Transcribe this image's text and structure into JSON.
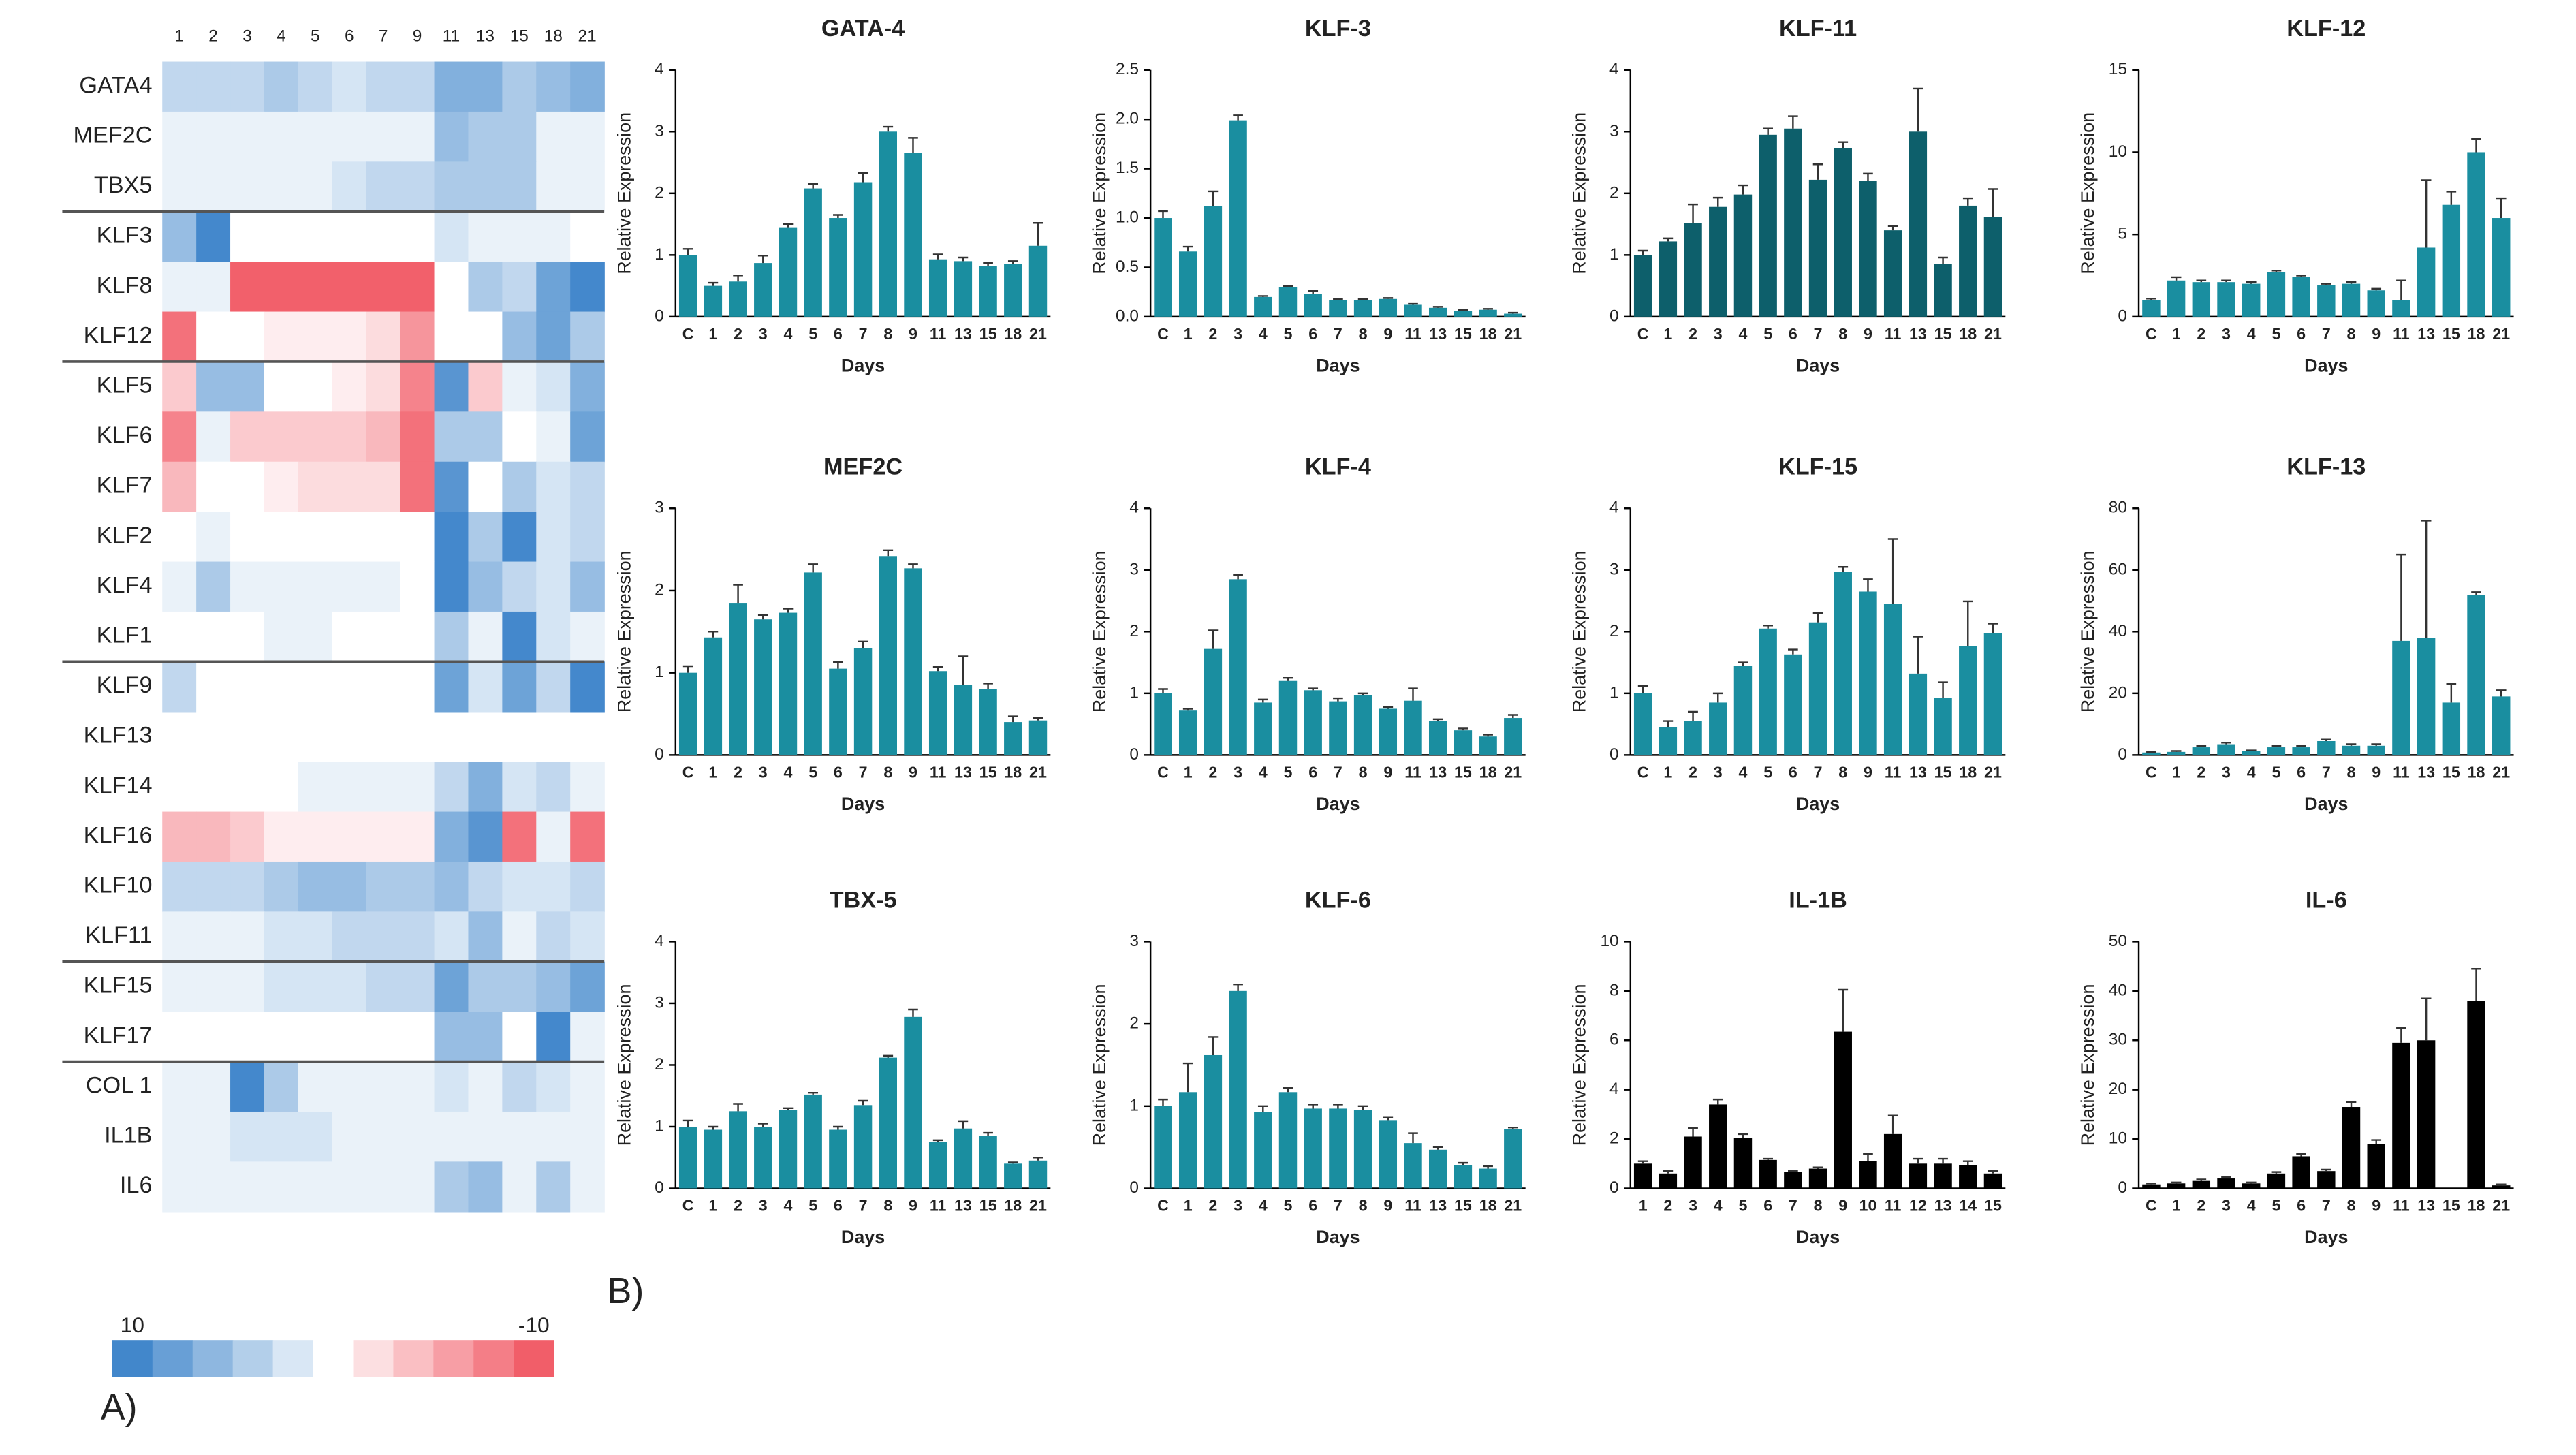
{
  "panel_labels": [
    "A)",
    "B)"
  ],
  "chart_data": [
    {
      "type": "heatmap",
      "columns": [
        "1",
        "2",
        "3",
        "4",
        "5",
        "6",
        "7",
        "9",
        "11",
        "13",
        "15",
        "18",
        "21"
      ],
      "rows": [
        "GATA4",
        "MEF2C",
        "TBX5",
        "KLF3",
        "KLF8",
        "KLF12",
        "KLF5",
        "KLF6",
        "KLF7",
        "KLF2",
        "KLF4",
        "KLF1",
        "KLF9",
        "KLF13",
        "KLF14",
        "KLF16",
        "KLF10",
        "KLF11",
        "KLF15",
        "KLF17",
        "COL 1",
        "IL1B",
        "IL6"
      ],
      "values": [
        [
          3,
          3,
          3,
          4,
          3,
          2,
          3,
          3,
          6,
          6,
          4,
          5,
          6
        ],
        [
          1,
          1,
          1,
          1,
          1,
          1,
          1,
          1,
          5,
          4,
          4,
          1,
          1
        ],
        [
          1,
          1,
          1,
          1,
          1,
          2,
          3,
          3,
          4,
          4,
          4,
          1,
          1
        ],
        [
          5,
          9,
          0,
          0,
          0,
          0,
          0,
          0,
          2,
          1,
          1,
          1,
          0
        ],
        [
          1,
          1,
          -9,
          -9,
          -9,
          -9,
          -9,
          -9,
          0,
          4,
          3,
          7,
          9
        ],
        [
          -8,
          0,
          0,
          -1,
          -1,
          -1,
          -2,
          -6,
          0,
          0,
          5,
          7,
          4
        ],
        [
          -3,
          5,
          5,
          0,
          0,
          -1,
          -2,
          -7,
          8,
          -3,
          1,
          2,
          6
        ],
        [
          -7,
          1,
          -3,
          -3,
          -3,
          -3,
          -4,
          -8,
          4,
          4,
          0,
          1,
          7
        ],
        [
          -4,
          0,
          0,
          -1,
          -2,
          -2,
          -2,
          -8,
          8,
          0,
          4,
          2,
          3
        ],
        [
          0,
          1,
          0,
          0,
          0,
          0,
          0,
          0,
          9,
          4,
          9,
          2,
          3
        ],
        [
          1,
          4,
          1,
          1,
          1,
          1,
          1,
          0,
          9,
          5,
          3,
          2,
          5
        ],
        [
          0,
          0,
          0,
          1,
          1,
          0,
          0,
          0,
          4,
          1,
          9,
          2,
          1
        ],
        [
          3,
          0,
          0,
          0,
          0,
          0,
          0,
          0,
          7,
          2,
          7,
          3,
          9
        ],
        [
          null,
          null,
          null,
          null,
          null,
          null,
          null,
          null,
          null,
          null,
          null,
          null,
          null
        ],
        [
          0,
          0,
          0,
          0,
          1,
          1,
          1,
          1,
          3,
          6,
          2,
          3,
          1
        ],
        [
          -4,
          -4,
          -3,
          -1,
          -1,
          -1,
          -1,
          -1,
          6,
          8,
          -8,
          1,
          -8
        ],
        [
          3,
          3,
          3,
          4,
          5,
          5,
          4,
          4,
          5,
          3,
          2,
          2,
          3
        ],
        [
          1,
          1,
          1,
          2,
          2,
          3,
          3,
          3,
          2,
          5,
          1,
          3,
          2
        ],
        [
          1,
          1,
          1,
          2,
          2,
          2,
          3,
          3,
          7,
          4,
          4,
          5,
          7
        ],
        [
          0,
          0,
          0,
          0,
          0,
          0,
          0,
          0,
          5,
          5,
          0,
          9,
          1
        ],
        [
          1,
          1,
          9,
          4,
          1,
          1,
          1,
          1,
          2,
          1,
          3,
          2,
          1
        ],
        [
          1,
          1,
          2,
          2,
          2,
          1,
          1,
          1,
          1,
          1,
          1,
          1,
          1
        ],
        [
          1,
          1,
          1,
          1,
          1,
          1,
          1,
          1,
          4,
          5,
          1,
          4,
          1
        ]
      ],
      "zlim": [
        -10,
        10
      ],
      "colorbar_ticks": [
        10,
        -10
      ],
      "positive_color": "#2f7bc6",
      "negative_color": "#f04e5a"
    },
    {
      "type": "bar",
      "title": "GATA-4",
      "xlabel": "Days",
      "ylabel": "Relative Expression",
      "color": "#1a8ea0",
      "categories": [
        "C",
        "1",
        "2",
        "3",
        "4",
        "5",
        "6",
        "7",
        "8",
        "9",
        "11",
        "13",
        "15",
        "18",
        "21"
      ],
      "values": [
        1.0,
        0.5,
        0.57,
        0.87,
        1.45,
        2.08,
        1.6,
        2.18,
        3.0,
        2.65,
        0.93,
        0.9,
        0.82,
        0.85,
        1.15
      ],
      "errors": [
        0.1,
        0.05,
        0.1,
        0.12,
        0.05,
        0.07,
        0.05,
        0.15,
        0.08,
        0.25,
        0.08,
        0.06,
        0.05,
        0.05,
        0.37
      ],
      "ylim": [
        0,
        4
      ],
      "yticks": [
        0,
        1,
        2,
        3,
        4
      ]
    },
    {
      "type": "bar",
      "title": "KLF-3",
      "xlabel": "Days",
      "ylabel": "Relative Expression",
      "color": "#1a8ea0",
      "categories": [
        "C",
        "1",
        "2",
        "3",
        "4",
        "5",
        "6",
        "7",
        "8",
        "9",
        "11",
        "13",
        "15",
        "18",
        "21"
      ],
      "values": [
        1.0,
        0.66,
        1.12,
        1.99,
        0.2,
        0.3,
        0.23,
        0.17,
        0.17,
        0.18,
        0.12,
        0.09,
        0.06,
        0.07,
        0.03
      ],
      "errors": [
        0.07,
        0.05,
        0.15,
        0.05,
        0.01,
        0.01,
        0.03,
        0.01,
        0.01,
        0.01,
        0.01,
        0.01,
        0.01,
        0.01,
        0.01
      ],
      "ylim": [
        0,
        2.5
      ],
      "yticks": [
        {
          "value": 0,
          "label": "0.0"
        },
        0.5,
        {
          "value": 1,
          "label": "1.0"
        },
        1.5,
        {
          "value": 2,
          "label": "2.0"
        },
        2.5
      ]
    },
    {
      "type": "bar",
      "title": "KLF-11",
      "xlabel": "Days",
      "ylabel": "Relative Expression",
      "color": "#0d5f6b",
      "categories": [
        "C",
        "1",
        "2",
        "3",
        "4",
        "5",
        "6",
        "7",
        "8",
        "9",
        "11",
        "13",
        "15",
        "18",
        "21"
      ],
      "values": [
        1.0,
        1.22,
        1.52,
        1.78,
        1.98,
        2.95,
        3.05,
        2.22,
        2.73,
        2.2,
        1.4,
        3.0,
        0.86,
        1.8,
        1.62
      ],
      "errors": [
        0.07,
        0.05,
        0.3,
        0.15,
        0.15,
        0.1,
        0.2,
        0.25,
        0.1,
        0.12,
        0.07,
        0.7,
        0.1,
        0.12,
        0.45
      ],
      "ylim": [
        0,
        4
      ],
      "yticks": [
        0,
        1,
        2,
        3,
        4
      ]
    },
    {
      "type": "bar",
      "title": "KLF-12",
      "xlabel": "Days",
      "ylabel": "Relative Expression",
      "color": "#1a8ea0",
      "categories": [
        "C",
        "1",
        "2",
        "3",
        "4",
        "5",
        "6",
        "7",
        "8",
        "9",
        "11",
        "13",
        "15",
        "18",
        "21"
      ],
      "values": [
        1.0,
        2.2,
        2.1,
        2.1,
        2.0,
        2.7,
        2.4,
        1.9,
        2.0,
        1.6,
        1.0,
        4.2,
        6.8,
        10.0,
        6.0
      ],
      "errors": [
        0.1,
        0.2,
        0.1,
        0.1,
        0.1,
        0.1,
        0.1,
        0.1,
        0.1,
        0.1,
        1.2,
        4.1,
        0.8,
        0.8,
        1.2
      ],
      "ylim": [
        0,
        15
      ],
      "yticks": [
        0,
        5,
        10,
        15
      ]
    },
    {
      "type": "bar",
      "title": "MEF2C",
      "xlabel": "Days",
      "ylabel": "Relative Expression",
      "color": "#1a8ea0",
      "categories": [
        "C",
        "1",
        "2",
        "3",
        "4",
        "5",
        "6",
        "7",
        "8",
        "9",
        "11",
        "13",
        "15",
        "18",
        "21"
      ],
      "values": [
        1.0,
        1.43,
        1.85,
        1.65,
        1.73,
        2.22,
        1.05,
        1.3,
        2.42,
        2.27,
        1.02,
        0.85,
        0.8,
        0.4,
        0.42
      ],
      "errors": [
        0.08,
        0.07,
        0.22,
        0.05,
        0.05,
        0.1,
        0.08,
        0.08,
        0.07,
        0.05,
        0.05,
        0.35,
        0.07,
        0.07,
        0.03
      ],
      "ylim": [
        0,
        3
      ],
      "yticks": [
        0,
        1,
        2,
        3
      ]
    },
    {
      "type": "bar",
      "title": "KLF-4",
      "xlabel": "Days",
      "ylabel": "Relative Expression",
      "color": "#1a8ea0",
      "categories": [
        "C",
        "1",
        "2",
        "3",
        "4",
        "5",
        "6",
        "7",
        "8",
        "9",
        "11",
        "13",
        "15",
        "18",
        "21"
      ],
      "values": [
        1.0,
        0.72,
        1.72,
        2.85,
        0.85,
        1.2,
        1.05,
        0.87,
        0.97,
        0.75,
        0.88,
        0.55,
        0.4,
        0.3,
        0.6
      ],
      "errors": [
        0.07,
        0.03,
        0.3,
        0.07,
        0.05,
        0.05,
        0.03,
        0.05,
        0.03,
        0.03,
        0.2,
        0.03,
        0.03,
        0.03,
        0.05
      ],
      "ylim": [
        0,
        4
      ],
      "yticks": [
        0,
        1,
        2,
        3,
        4
      ]
    },
    {
      "type": "bar",
      "title": "KLF-15",
      "xlabel": "Days",
      "ylabel": "Relative Expression",
      "color": "#1a8ea0",
      "categories": [
        "C",
        "1",
        "2",
        "3",
        "4",
        "5",
        "6",
        "7",
        "8",
        "9",
        "11",
        "13",
        "15",
        "18",
        "21"
      ],
      "values": [
        1.0,
        0.45,
        0.55,
        0.85,
        1.45,
        2.05,
        1.63,
        2.15,
        2.97,
        2.65,
        2.45,
        1.32,
        0.93,
        1.77,
        1.98
      ],
      "errors": [
        0.12,
        0.1,
        0.15,
        0.15,
        0.05,
        0.05,
        0.08,
        0.15,
        0.08,
        0.2,
        1.05,
        0.6,
        0.25,
        0.72,
        0.15
      ],
      "ylim": [
        0,
        4
      ],
      "yticks": [
        0,
        1,
        2,
        3,
        4
      ]
    },
    {
      "type": "bar",
      "title": "KLF-13",
      "xlabel": "Days",
      "ylabel": "Relative Expression",
      "color": "#1a8ea0",
      "categories": [
        "C",
        "1",
        "2",
        "3",
        "4",
        "5",
        "6",
        "7",
        "8",
        "9",
        "11",
        "13",
        "15",
        "18",
        "21"
      ],
      "values": [
        0.8,
        1,
        2.5,
        3.5,
        1.2,
        2.5,
        2.5,
        4.5,
        3,
        3,
        37,
        38,
        17,
        52,
        19
      ],
      "errors": [
        0.2,
        0.3,
        0.5,
        0.5,
        0.3,
        0.5,
        0.5,
        0.5,
        0.5,
        0.5,
        28,
        38,
        6,
        0.8,
        2
      ],
      "ylim": [
        0,
        80
      ],
      "yticks": [
        0,
        20,
        40,
        60,
        80
      ]
    },
    {
      "type": "bar",
      "title": "TBX-5",
      "xlabel": "Days",
      "ylabel": "Relative Expression",
      "color": "#1a8ea0",
      "categories": [
        "C",
        "1",
        "2",
        "3",
        "4",
        "5",
        "6",
        "7",
        "8",
        "9",
        "11",
        "13",
        "15",
        "18",
        "21"
      ],
      "values": [
        1.0,
        0.95,
        1.25,
        1.0,
        1.27,
        1.52,
        0.95,
        1.35,
        2.12,
        2.78,
        0.75,
        0.97,
        0.85,
        0.4,
        0.45
      ],
      "errors": [
        0.1,
        0.05,
        0.12,
        0.05,
        0.03,
        0.03,
        0.05,
        0.07,
        0.03,
        0.12,
        0.03,
        0.12,
        0.05,
        0.02,
        0.05
      ],
      "ylim": [
        0,
        4
      ],
      "yticks": [
        0,
        1,
        2,
        3,
        4
      ]
    },
    {
      "type": "bar",
      "title": "KLF-6",
      "xlabel": "Days",
      "ylabel": "Relative Expression",
      "color": "#1a8ea0",
      "categories": [
        "C",
        "1",
        "2",
        "3",
        "4",
        "5",
        "6",
        "7",
        "8",
        "9",
        "11",
        "13",
        "15",
        "18",
        "21"
      ],
      "values": [
        1.0,
        1.17,
        1.62,
        2.4,
        0.93,
        1.17,
        0.97,
        0.97,
        0.95,
        0.83,
        0.55,
        0.47,
        0.28,
        0.24,
        0.72
      ],
      "errors": [
        0.08,
        0.35,
        0.22,
        0.08,
        0.07,
        0.05,
        0.05,
        0.05,
        0.05,
        0.03,
        0.12,
        0.03,
        0.03,
        0.03,
        0.02
      ],
      "ylim": [
        0,
        3
      ],
      "yticks": [
        0,
        1,
        2,
        3
      ]
    },
    {
      "type": "bar",
      "title": "IL-1B",
      "xlabel": "Days",
      "ylabel": "Relative Expression",
      "color": "#000000",
      "categories": [
        "1",
        "2",
        "3",
        "4",
        "5",
        "6",
        "7",
        "8",
        "9",
        "10",
        "11",
        "12",
        "13",
        "14",
        "15"
      ],
      "values": [
        1.0,
        0.6,
        2.1,
        3.4,
        2.05,
        1.15,
        0.65,
        0.8,
        6.35,
        1.1,
        2.2,
        1.0,
        1.0,
        0.95,
        0.6
      ],
      "errors": [
        0.1,
        0.1,
        0.35,
        0.2,
        0.15,
        0.05,
        0.05,
        0.05,
        1.7,
        0.3,
        0.75,
        0.2,
        0.2,
        0.15,
        0.1
      ],
      "ylim": [
        0,
        10
      ],
      "yticks": [
        0,
        2,
        4,
        6,
        8,
        10
      ]
    },
    {
      "type": "bar",
      "title": "IL-6",
      "xlabel": "Days",
      "ylabel": "Relative Expression",
      "color": "#000000",
      "categories": [
        "C",
        "1",
        "2",
        "3",
        "4",
        "5",
        "6",
        "7",
        "8",
        "9",
        "11",
        "13",
        "15",
        "18",
        "21"
      ],
      "values": [
        0.8,
        1,
        1.5,
        2,
        1,
        3,
        6.5,
        3.5,
        16.5,
        9,
        29.5,
        30,
        null,
        38,
        0.6
      ],
      "errors": [
        0.2,
        0.2,
        0.3,
        0.3,
        0.2,
        0.3,
        0.5,
        0.3,
        1,
        0.8,
        3,
        8.5,
        null,
        6.5,
        0.2
      ],
      "ylim": [
        0,
        50
      ],
      "yticks": [
        0,
        10,
        20,
        30,
        40,
        50
      ]
    }
  ]
}
